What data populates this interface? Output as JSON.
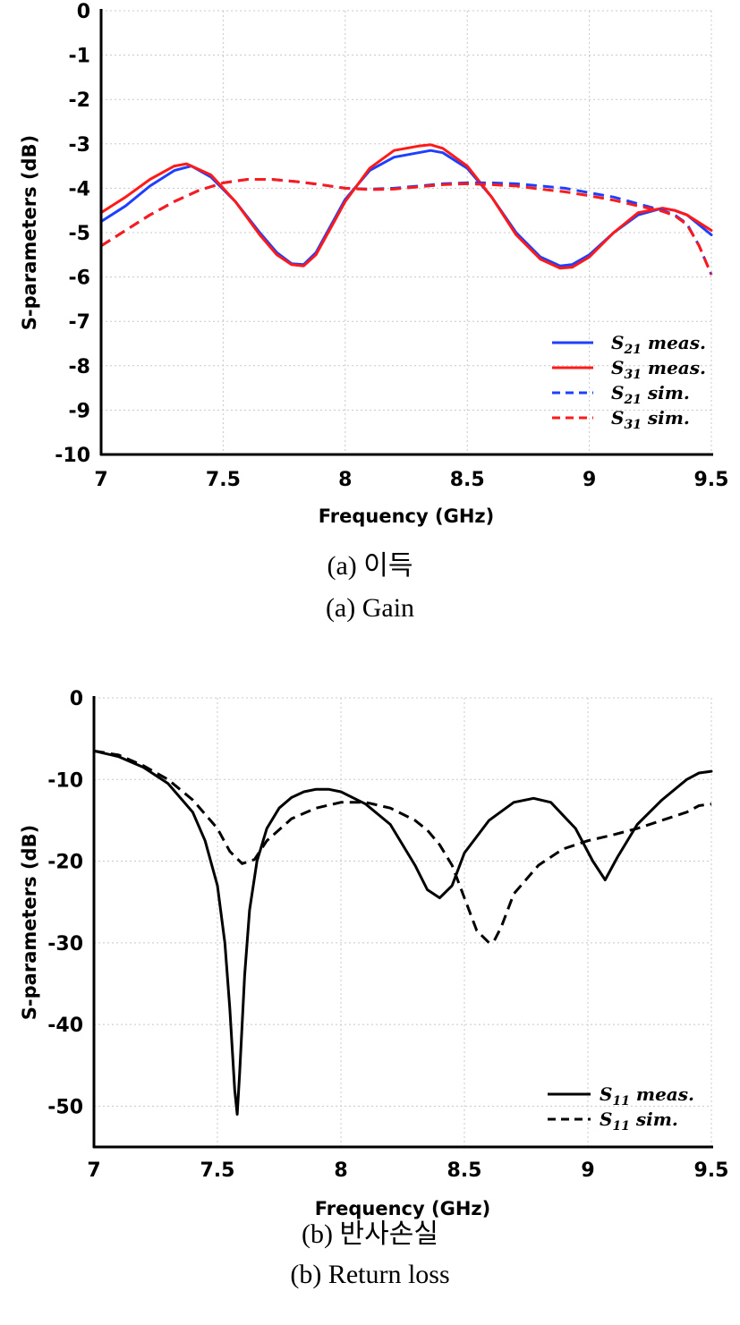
{
  "chart_data": [
    {
      "type": "line",
      "xlabel": "Frequency (GHz)",
      "ylabel": "S-parameters (dB)",
      "xlim": [
        7,
        9.5
      ],
      "ylim": [
        -10,
        0
      ],
      "xticks": [
        "7",
        "7.5",
        "8",
        "8.5",
        "9",
        "9.5"
      ],
      "yticks": [
        "0",
        "-1",
        "-2",
        "-3",
        "-4",
        "-5",
        "-6",
        "-7",
        "-8",
        "-9",
        "-10"
      ],
      "grid": true,
      "legend_position": "bottom-right",
      "series": [
        {
          "name": "S21 meas.",
          "label_main": "S",
          "label_sub": "21",
          "label_rest": " meas.",
          "color": "#1f3fff",
          "dash": "solid",
          "x": [
            7.0,
            7.1,
            7.2,
            7.3,
            7.37,
            7.45,
            7.55,
            7.65,
            7.72,
            7.78,
            7.83,
            7.88,
            7.95,
            8.0,
            8.1,
            8.2,
            8.3,
            8.35,
            8.4,
            8.5,
            8.6,
            8.7,
            8.8,
            8.88,
            8.93,
            9.0,
            9.1,
            9.2,
            9.3,
            9.35,
            9.4,
            9.5
          ],
          "y": [
            -4.75,
            -4.4,
            -3.95,
            -3.6,
            -3.5,
            -3.75,
            -4.3,
            -5.0,
            -5.45,
            -5.7,
            -5.72,
            -5.45,
            -4.75,
            -4.25,
            -3.6,
            -3.3,
            -3.2,
            -3.15,
            -3.2,
            -3.55,
            -4.2,
            -5.0,
            -5.55,
            -5.75,
            -5.72,
            -5.5,
            -5.0,
            -4.6,
            -4.45,
            -4.5,
            -4.6,
            -5.05
          ]
        },
        {
          "name": "S31 meas.",
          "label_main": "S",
          "label_sub": "31",
          "label_rest": " meas.",
          "color": "#ff1a1a",
          "dash": "solid",
          "x": [
            7.0,
            7.1,
            7.2,
            7.3,
            7.35,
            7.45,
            7.55,
            7.65,
            7.72,
            7.78,
            7.83,
            7.88,
            7.95,
            8.0,
            8.1,
            8.2,
            8.3,
            8.35,
            8.4,
            8.5,
            8.6,
            8.7,
            8.8,
            8.88,
            8.93,
            9.0,
            9.1,
            9.2,
            9.3,
            9.35,
            9.4,
            9.5
          ],
          "y": [
            -4.55,
            -4.2,
            -3.8,
            -3.5,
            -3.45,
            -3.7,
            -4.3,
            -5.05,
            -5.5,
            -5.72,
            -5.75,
            -5.5,
            -4.8,
            -4.3,
            -3.55,
            -3.15,
            -3.05,
            -3.02,
            -3.1,
            -3.5,
            -4.2,
            -5.05,
            -5.6,
            -5.8,
            -5.78,
            -5.55,
            -5.0,
            -4.55,
            -4.45,
            -4.5,
            -4.6,
            -4.95
          ]
        },
        {
          "name": "S21 sim.",
          "label_main": "S",
          "label_sub": "21",
          "label_rest": " sim.",
          "color": "#1f3fff",
          "dash": "dashed",
          "x": [
            7.0,
            7.1,
            7.2,
            7.3,
            7.4,
            7.5,
            7.6,
            7.7,
            7.8,
            7.9,
            8.0,
            8.1,
            8.2,
            8.3,
            8.4,
            8.5,
            8.6,
            8.7,
            8.8,
            8.9,
            9.0,
            9.1,
            9.2,
            9.3,
            9.35,
            9.4,
            9.45,
            9.5
          ],
          "y": [
            -5.3,
            -4.95,
            -4.6,
            -4.3,
            -4.05,
            -3.88,
            -3.8,
            -3.8,
            -3.85,
            -3.92,
            -4.0,
            -4.02,
            -4.0,
            -3.95,
            -3.9,
            -3.88,
            -3.88,
            -3.9,
            -3.95,
            -4.0,
            -4.1,
            -4.2,
            -4.35,
            -4.5,
            -4.6,
            -4.8,
            -5.3,
            -5.95
          ]
        },
        {
          "name": "S31 sim.",
          "label_main": "S",
          "label_sub": "31",
          "label_rest": " sim.",
          "color": "#ff1a1a",
          "dash": "dashed",
          "x": [
            7.0,
            7.1,
            7.2,
            7.3,
            7.4,
            7.5,
            7.6,
            7.7,
            7.8,
            7.9,
            8.0,
            8.1,
            8.2,
            8.3,
            8.4,
            8.5,
            8.6,
            8.7,
            8.8,
            8.9,
            9.0,
            9.1,
            9.2,
            9.3,
            9.35,
            9.4,
            9.45,
            9.5
          ],
          "y": [
            -5.3,
            -4.95,
            -4.6,
            -4.3,
            -4.05,
            -3.88,
            -3.8,
            -3.8,
            -3.85,
            -3.92,
            -4.0,
            -4.03,
            -4.02,
            -3.97,
            -3.92,
            -3.9,
            -3.92,
            -3.95,
            -4.02,
            -4.08,
            -4.17,
            -4.27,
            -4.4,
            -4.52,
            -4.62,
            -4.82,
            -5.3,
            -5.95
          ]
        }
      ]
    },
    {
      "type": "line",
      "xlabel": "Frequency (GHz)",
      "ylabel": "S-parameters (dB)",
      "xlim": [
        7,
        9.5
      ],
      "ylim": [
        -55,
        0
      ],
      "xticks": [
        "7",
        "7.5",
        "8",
        "8.5",
        "9",
        "9.5"
      ],
      "yticks": [
        "0",
        "-10",
        "-20",
        "-30",
        "-40",
        "-50"
      ],
      "grid": true,
      "legend_position": "bottom-right",
      "series": [
        {
          "name": "S11 meas.",
          "label_main": "S",
          "label_sub": "11",
          "label_rest": " meas.",
          "color": "#000000",
          "dash": "solid",
          "x": [
            7.0,
            7.1,
            7.2,
            7.3,
            7.4,
            7.45,
            7.5,
            7.53,
            7.55,
            7.57,
            7.58,
            7.59,
            7.61,
            7.63,
            7.66,
            7.7,
            7.75,
            7.8,
            7.85,
            7.9,
            7.95,
            8.0,
            8.1,
            8.2,
            8.3,
            8.35,
            8.4,
            8.45,
            8.5,
            8.6,
            8.7,
            8.78,
            8.85,
            8.95,
            9.02,
            9.07,
            9.12,
            9.2,
            9.3,
            9.4,
            9.45,
            9.5
          ],
          "y": [
            -6.5,
            -7.2,
            -8.5,
            -10.5,
            -14.0,
            -17.5,
            -23.0,
            -30.0,
            -38.0,
            -48.0,
            -51.0,
            -46.0,
            -34.0,
            -26.0,
            -20.0,
            -16.0,
            -13.5,
            -12.2,
            -11.5,
            -11.2,
            -11.2,
            -11.5,
            -13.0,
            -15.5,
            -20.5,
            -23.5,
            -24.5,
            -23.0,
            -19.0,
            -15.0,
            -12.8,
            -12.3,
            -12.8,
            -16.0,
            -20.0,
            -22.3,
            -19.5,
            -15.5,
            -12.5,
            -10.0,
            -9.2,
            -9.0
          ]
        },
        {
          "name": "S11 sim.",
          "label_main": "S",
          "label_sub": "11",
          "label_rest": " sim.",
          "color": "#000000",
          "dash": "dashed",
          "x": [
            7.0,
            7.1,
            7.2,
            7.3,
            7.4,
            7.5,
            7.55,
            7.6,
            7.65,
            7.7,
            7.8,
            7.9,
            8.0,
            8.1,
            8.2,
            8.3,
            8.35,
            8.4,
            8.45,
            8.5,
            8.55,
            8.6,
            8.62,
            8.65,
            8.7,
            8.8,
            8.9,
            9.0,
            9.1,
            9.2,
            9.3,
            9.4,
            9.45,
            9.5
          ],
          "y": [
            -6.5,
            -7.0,
            -8.3,
            -10.0,
            -12.5,
            -16.0,
            -18.8,
            -20.3,
            -19.8,
            -17.5,
            -14.8,
            -13.5,
            -12.8,
            -12.8,
            -13.5,
            -15.0,
            -16.2,
            -18.0,
            -20.5,
            -24.5,
            -28.5,
            -30.0,
            -29.8,
            -28.0,
            -24.0,
            -20.5,
            -18.5,
            -17.5,
            -16.8,
            -16.0,
            -15.0,
            -14.0,
            -13.2,
            -13.0
          ]
        }
      ]
    }
  ],
  "captions": {
    "chart1_ko": "(a)  이득",
    "chart1_en": "(a)  Gain",
    "chart2_ko": "(b)  반사손실",
    "chart2_en": "(b)  Return  loss"
  }
}
